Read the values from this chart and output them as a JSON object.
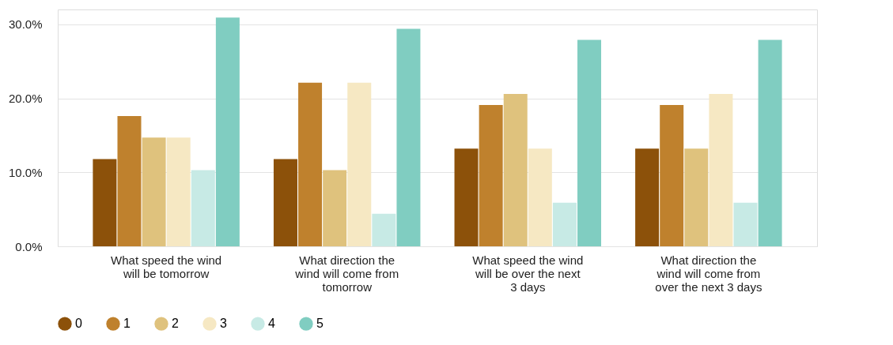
{
  "chart_data": {
    "type": "bar",
    "categories": [
      "What speed the wind will be tomorrow",
      "What direction the wind will come from tomorrow",
      "What speed the wind will be over the next 3 days",
      "What direction the wind will come from over the next 3 days"
    ],
    "series": [
      {
        "name": "0",
        "color": "#8c510a",
        "values": [
          11.8,
          11.8,
          13.2,
          13.2
        ]
      },
      {
        "name": "1",
        "color": "#bf812d",
        "values": [
          17.6,
          22.1,
          19.1,
          19.1
        ]
      },
      {
        "name": "2",
        "color": "#dfc27d",
        "values": [
          14.7,
          10.3,
          20.6,
          13.2
        ]
      },
      {
        "name": "3",
        "color": "#f6e8c3",
        "values": [
          14.7,
          22.1,
          13.2,
          20.6
        ]
      },
      {
        "name": "4",
        "color": "#c7eae5",
        "values": [
          10.3,
          4.4,
          5.9,
          5.9
        ]
      },
      {
        "name": "5",
        "color": "#80cdc1",
        "values": [
          30.9,
          29.4,
          27.9,
          27.9
        ]
      }
    ],
    "ylim": [
      0,
      32
    ],
    "yticks": [
      {
        "value": 0,
        "label": "0.0%"
      },
      {
        "value": 10,
        "label": "10.0%"
      },
      {
        "value": 20,
        "label": "20.0%"
      },
      {
        "value": 30,
        "label": "30.0%"
      }
    ],
    "grid": "y",
    "legend": "bottom left",
    "marker": "circle"
  }
}
